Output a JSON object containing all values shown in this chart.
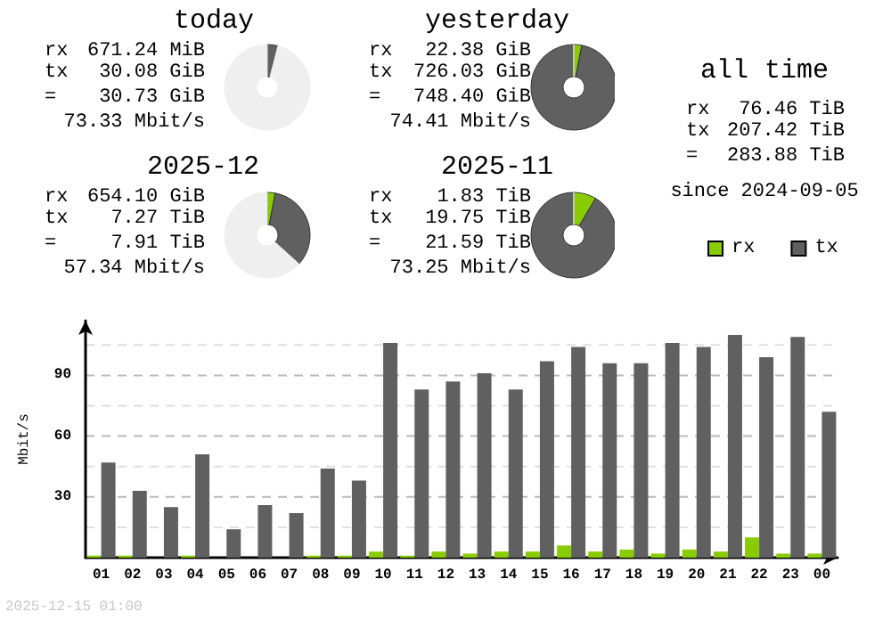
{
  "chart_data": [
    {
      "type": "donut",
      "title": "today",
      "categories": [
        null,
        null,
        null
      ],
      "values": [
        null,
        4.0,
        95.9
      ],
      "colors": [
        "#88cc00",
        "#606060",
        "#efefef"
      ],
      "annotations": [
        "rx",
        "671.24 MiB",
        "tx",
        "30.08 GiB",
        "=",
        "30.73 GiB",
        "73.33 Mbit/s"
      ]
    },
    {
      "type": "donut",
      "title": "yesterday",
      "categories": [
        null,
        null,
        null
      ],
      "values": [
        3.0,
        97.0,
        0
      ],
      "colors": [
        "#88cc00",
        "#606060",
        "#efefef"
      ],
      "annotations": [
        "rx",
        "22.38 GiB",
        "tx",
        "726.03 GiB",
        "=",
        "748.40 GiB",
        "74.41 Mbit/s"
      ]
    },
    {
      "type": "other",
      "title": "all time",
      "annotations": [
        "rx",
        "76.46 TiB",
        "tx",
        "207.42 TiB",
        "=",
        "283.88 TiB",
        "since 2024-09-05"
      ]
    },
    {
      "type": "donut",
      "title": "2025-12",
      "categories": [
        null,
        null,
        null
      ],
      "values": [
        3.0,
        33.7,
        63.3
      ],
      "colors": [
        "#88cc00",
        "#606060",
        "#efefef"
      ],
      "annotations": [
        "rx",
        "654.10 GiB",
        "tx",
        "7.27 TiB",
        "=",
        "7.91 TiB",
        "57.34 Mbit/s"
      ]
    },
    {
      "type": "donut",
      "title": "2025-11",
      "categories": [
        null,
        null,
        null
      ],
      "values": [
        8.5,
        91.5,
        0
      ],
      "colors": [
        "#88cc00",
        "#606060",
        "#efefef"
      ],
      "annotations": [
        "rx",
        "1.83 TiB",
        "tx",
        "19.75 TiB",
        "=",
        "21.59 TiB",
        "73.25 Mbit/s"
      ]
    },
    {
      "type": "bar",
      "ylabel": "Mbit/s",
      "categories": [
        "01",
        "02",
        "03",
        "04",
        "05",
        "06",
        "07",
        "08",
        "09",
        "10",
        "11",
        "12",
        "13",
        "14",
        "15",
        "16",
        "17",
        "18",
        "19",
        "20",
        "21",
        "22",
        "23",
        "00"
      ],
      "series": [
        {
          "name": "rx",
          "color": "#88cc00",
          "values": [
            1,
            1,
            0,
            1,
            0,
            0,
            0,
            1,
            1,
            3,
            1,
            3,
            2,
            3,
            3,
            6,
            3,
            4,
            2,
            4,
            3,
            10,
            2,
            2
          ]
        },
        {
          "name": "tx",
          "color": "#606060",
          "values": [
            47,
            33,
            25,
            51,
            14,
            26,
            22,
            44,
            38,
            106,
            83,
            87,
            91,
            83,
            97,
            104,
            96,
            96,
            106,
            104,
            110,
            99,
            109,
            72
          ]
        }
      ],
      "ylim": [
        0,
        117
      ],
      "yticks": [
        {
          "value": 15,
          "label": null
        },
        30,
        {
          "value": 45,
          "label": null
        },
        60,
        {
          "value": 75,
          "label": null
        },
        90,
        {
          "value": 105,
          "label": null
        }
      ],
      "grid": "y",
      "legend": "top right",
      "annotations": [
        "2025-12-15 01:00"
      ]
    }
  ]
}
